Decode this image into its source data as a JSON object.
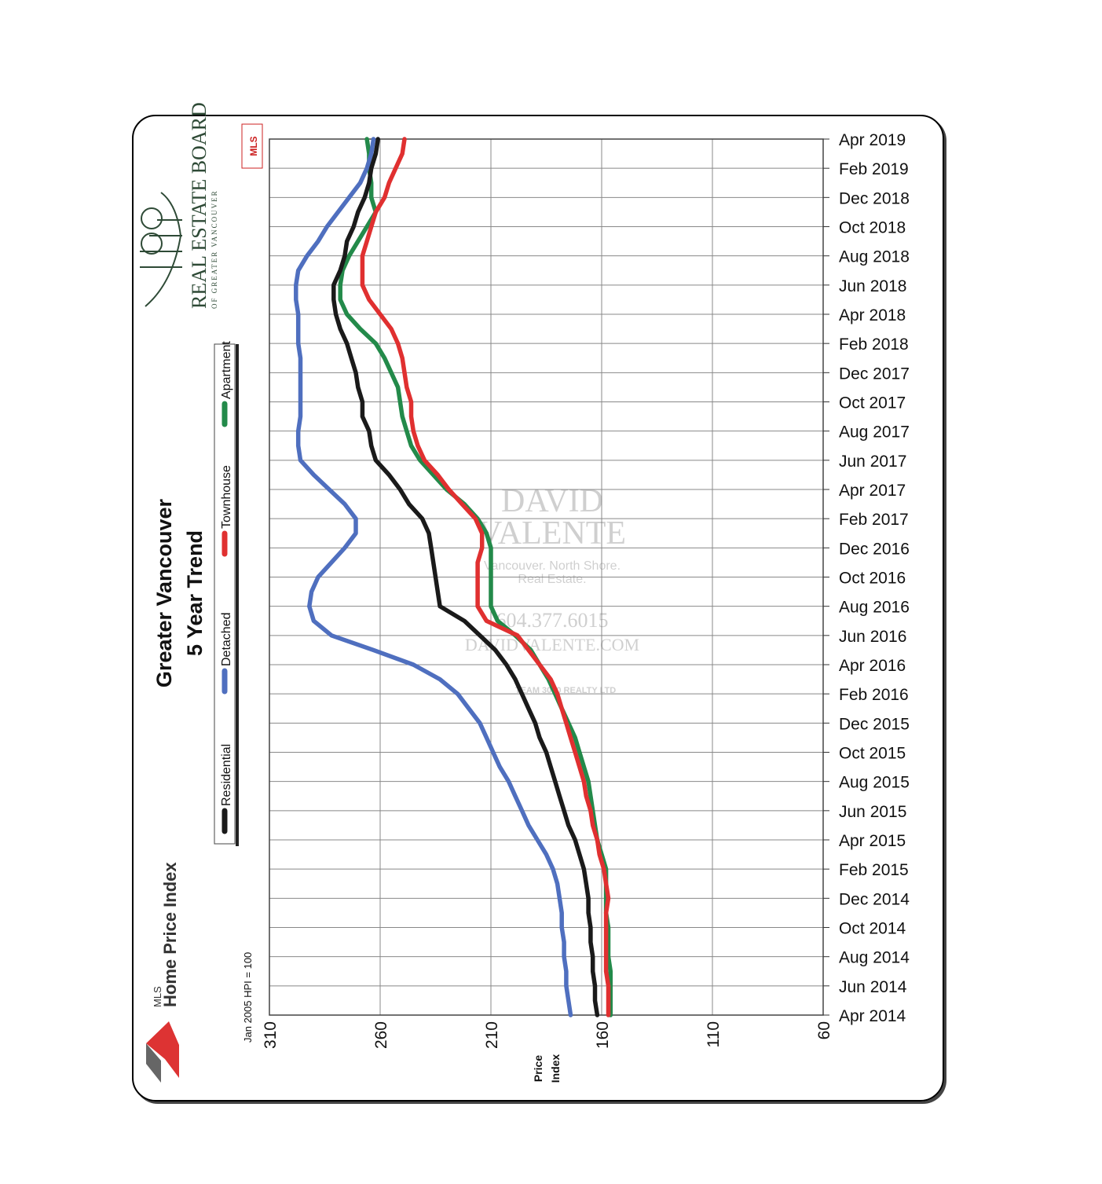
{
  "chart_data": {
    "type": "line",
    "title": "Greater Vancouver",
    "subtitle": "5 Year Trend",
    "xlabel": "Price\nIndex",
    "index_note": "Jan 2005 HPI = 100",
    "xlim": [
      310,
      60
    ],
    "xticks": [
      "310",
      "260",
      "210",
      "160",
      "110",
      "60"
    ],
    "dates": [
      "Apr 2014",
      "May 2014",
      "Jun 2014",
      "Jul 2014",
      "Aug 2014",
      "Sep 2014",
      "Oct 2014",
      "Nov 2014",
      "Dec 2014",
      "Jan 2015",
      "Feb 2015",
      "Mar 2015",
      "Apr 2015",
      "May 2015",
      "Jun 2015",
      "Jul 2015",
      "Aug 2015",
      "Sep 2015",
      "Oct 2015",
      "Nov 2015",
      "Dec 2015",
      "Jan 2016",
      "Feb 2016",
      "Mar 2016",
      "Apr 2016",
      "May 2016",
      "Jun 2016",
      "Jul 2016",
      "Aug 2016",
      "Sep 2016",
      "Oct 2016",
      "Nov 2016",
      "Dec 2016",
      "Jan 2017",
      "Feb 2017",
      "Mar 2017",
      "Apr 2017",
      "May 2017",
      "Jun 2017",
      "Jul 2017",
      "Aug 2017",
      "Sep 2017",
      "Oct 2017",
      "Nov 2017",
      "Dec 2017",
      "Jan 2018",
      "Feb 2018",
      "Mar 2018",
      "Apr 2018",
      "May 2018",
      "Jun 2018",
      "Jul 2018",
      "Aug 2018",
      "Sep 2018",
      "Oct 2018",
      "Nov 2018",
      "Dec 2018",
      "Jan 2019",
      "Feb 2019",
      "Mar 2019",
      "Apr 2019"
    ],
    "date_labels": [
      "Apr 2014",
      "Jun 2014",
      "Aug 2014",
      "Oct 2014",
      "Dec 2014",
      "Feb 2015",
      "Apr 2015",
      "Jun 2015",
      "Aug 2015",
      "Oct 2015",
      "Dec 2015",
      "Feb 2016",
      "Apr 2016",
      "Jun 2016",
      "Aug 2016",
      "Oct 2016",
      "Dec 2016",
      "Feb 2017",
      "Apr 2017",
      "Jun 2017",
      "Aug 2017",
      "Oct 2017",
      "Dec 2017",
      "Feb 2018",
      "Apr 2018",
      "Jun 2018",
      "Aug 2018",
      "Oct 2018",
      "Dec 2018",
      "Feb 2019",
      "Apr 2019"
    ],
    "series": [
      {
        "name": "Residential",
        "color": "#1a1a1a",
        "values": [
          162,
          163,
          163,
          164,
          164,
          165,
          165,
          166,
          166,
          167,
          168,
          170,
          172,
          175,
          177,
          179,
          181,
          183,
          185,
          188,
          190,
          193,
          196,
          199,
          203,
          208,
          215,
          222,
          233,
          234,
          235,
          236,
          237,
          238,
          241,
          247,
          251,
          256,
          262,
          264,
          265,
          268,
          268,
          270,
          271,
          273,
          275,
          278,
          280,
          281,
          281,
          278,
          276,
          275,
          272,
          270,
          267,
          265,
          264,
          262,
          261
        ]
      },
      {
        "name": "Detached",
        "color": "#4f6fbf",
        "values": [
          174,
          175,
          176,
          176,
          177,
          177,
          178,
          178,
          179,
          180,
          182,
          185,
          189,
          193,
          196,
          199,
          202,
          206,
          209,
          212,
          215,
          220,
          225,
          233,
          245,
          263,
          282,
          290,
          292,
          291,
          288,
          282,
          276,
          271,
          271,
          276,
          283,
          290,
          296,
          297,
          297,
          296,
          296,
          296,
          296,
          296,
          297,
          297,
          297,
          298,
          298,
          297,
          293,
          288,
          284,
          279,
          274,
          269,
          266,
          264,
          263
        ]
      },
      {
        "name": "Townhouse",
        "color": "#e03030",
        "values": [
          157,
          157,
          157,
          158,
          158,
          158,
          158,
          158,
          157,
          158,
          159,
          161,
          162,
          164,
          165,
          167,
          168,
          170,
          172,
          174,
          176,
          178,
          180,
          183,
          188,
          193,
          198,
          212,
          216,
          216,
          216,
          216,
          214,
          214,
          217,
          223,
          229,
          234,
          240,
          243,
          245,
          246,
          246,
          248,
          249,
          250,
          252,
          255,
          260,
          265,
          268,
          268,
          268,
          266,
          264,
          262,
          258,
          256,
          253,
          250,
          249
        ]
      },
      {
        "name": "Apartment",
        "color": "#238a4a",
        "values": [
          156,
          156,
          156,
          156,
          157,
          157,
          157,
          158,
          158,
          158,
          158,
          160,
          162,
          163,
          164,
          165,
          166,
          168,
          170,
          172,
          175,
          178,
          181,
          184,
          188,
          192,
          199,
          207,
          210,
          210,
          210,
          210,
          210,
          212,
          216,
          222,
          230,
          236,
          242,
          246,
          248,
          250,
          251,
          252,
          255,
          258,
          262,
          269,
          275,
          278,
          278,
          277,
          274,
          270,
          266,
          262,
          264,
          264,
          265,
          265,
          266
        ]
      }
    ],
    "legend": [
      "Residential",
      "Detached",
      "Townhouse",
      "Apartment"
    ],
    "legend_position": "left",
    "grid": true
  },
  "branding": {
    "hpi_line1": "MLS",
    "hpi_line2": "Home Price Index",
    "board_line1": "REAL ESTATE BOARD",
    "board_line2": "OF GREATER VANCOUVER",
    "mls_badge": "MLS",
    "watermark_name1": "DAVID",
    "watermark_name2": "VALENTE",
    "watermark_tag1": "Vancouver. North Shore.",
    "watermark_tag2": "Real Estate.",
    "watermark_phone": "604.377.6015",
    "watermark_site": "DAVIDVALENTE.COM",
    "watermark_team": "TEAM 3000 REALTY LTD"
  }
}
